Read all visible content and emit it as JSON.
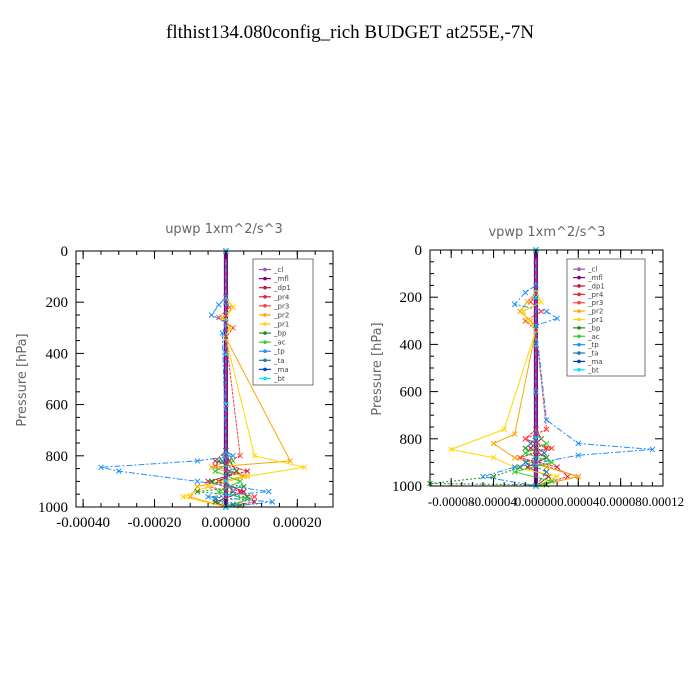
{
  "figure_title": "flthist134.080config_rich  BUDGET at255E,-7N",
  "legend_labels": [
    "_cl",
    "_mfl",
    "_dp1",
    "_pr4",
    "_pr3",
    "_pr2",
    "_pr1",
    "_bp",
    "_ac",
    "_tp",
    "_ta",
    "_ma",
    "_bt"
  ],
  "series_colors": [
    "#9b59b6",
    "#800080",
    "#c0143c",
    "#e0203c",
    "#ff4040",
    "#ffa500",
    "#ffd700",
    "#228b22",
    "#32cd32",
    "#1e90ff",
    "#1f77b4",
    "#0044cc",
    "#00e5ff"
  ],
  "chart_data": [
    {
      "type": "line",
      "title": "upwp  1xm^2/s^3",
      "ylabel": "Pressure [hPa]",
      "xlabel": "",
      "xlim": [
        -0.00042,
        0.0003
      ],
      "ylim": [
        1000,
        0
      ],
      "yticks": [
        0,
        200,
        400,
        600,
        800,
        1000
      ],
      "ytick_labels": [
        "0",
        "200",
        "400",
        "600",
        "800",
        "1000"
      ],
      "xticks": [
        -0.0004,
        -0.0002,
        0.0,
        0.0002
      ],
      "xtick_labels": [
        "-0.00040",
        "-0.00020",
        "0.00000",
        "0.00020"
      ],
      "legend_position": "top-right",
      "series": [
        {
          "name": "_cl",
          "x": [
            0,
            0,
            0,
            0,
            0,
            0,
            0,
            0,
            0,
            0,
            0
          ],
          "y": [
            0,
            100,
            200,
            300,
            400,
            500,
            600,
            700,
            800,
            900,
            1000
          ]
        },
        {
          "name": "_mfl",
          "x": [
            0,
            0,
            0,
            0,
            0,
            0,
            0,
            0,
            0,
            0,
            0
          ],
          "y": [
            0,
            100,
            200,
            300,
            400,
            500,
            600,
            700,
            800,
            900,
            1000
          ]
        },
        {
          "name": "_dp1",
          "x": [
            0,
            0,
            1e-05,
            3e-05,
            -2e-05,
            5e-05,
            -3e-05,
            0
          ],
          "y": [
            0,
            780,
            820,
            860,
            900,
            940,
            980,
            1000
          ]
        },
        {
          "name": "_pr4",
          "x": [
            0,
            0,
            -3e-05,
            6e-05,
            -5e-05,
            4e-05,
            8e-05,
            0
          ],
          "y": [
            0,
            780,
            820,
            860,
            900,
            940,
            980,
            1000
          ]
        },
        {
          "name": "_pr3",
          "x": [
            0,
            0,
            1e-05,
            -2e-05,
            2e-05,
            0,
            4e-05,
            -3e-05,
            6e-05,
            -5e-05,
            8e-05,
            0
          ],
          "y": [
            0,
            180,
            220,
            260,
            300,
            340,
            800,
            840,
            880,
            920,
            960,
            1000
          ]
        },
        {
          "name": "_pr2",
          "x": [
            0,
            0,
            2e-05,
            -1e-05,
            1e-05,
            0,
            0.00018,
            -4e-05,
            5e-05,
            -8e-05,
            -0.0001,
            0
          ],
          "y": [
            0,
            180,
            220,
            260,
            300,
            340,
            820,
            845,
            880,
            920,
            960,
            1000
          ]
        },
        {
          "name": "_pr1",
          "x": [
            0,
            0,
            2e-05,
            0,
            1e-05,
            0,
            8e-05,
            0.00022,
            6e-05,
            -5e-05,
            -0.00012,
            0
          ],
          "y": [
            0,
            180,
            220,
            260,
            300,
            340,
            800,
            845,
            880,
            920,
            960,
            1000
          ]
        },
        {
          "name": "_bp",
          "x": [
            0,
            0,
            -2e-05,
            3e-05,
            -4e-05,
            5e-05,
            -8e-05,
            6e-05,
            -3e-05,
            4e-05,
            0
          ],
          "y": [
            0,
            780,
            820,
            860,
            900,
            920,
            940,
            960,
            980,
            995,
            1000
          ]
        },
        {
          "name": "_ac",
          "x": [
            0,
            0,
            2e-05,
            -3e-05,
            4e-05,
            -2e-05,
            6e-05,
            3e-05,
            0
          ],
          "y": [
            0,
            780,
            820,
            860,
            900,
            940,
            970,
            990,
            1000
          ]
        },
        {
          "name": "_tp",
          "x": [
            0,
            0,
            -2e-05,
            -4e-05,
            0,
            -1e-05,
            0,
            2e-05,
            -8e-05,
            -0.00035,
            -0.0003,
            -8e-05,
            0.00012,
            -5e-05,
            0.00013,
            0
          ],
          "y": [
            0,
            180,
            210,
            250,
            280,
            320,
            780,
            800,
            820,
            845,
            860,
            900,
            940,
            960,
            980,
            1000
          ]
        },
        {
          "name": "_ta",
          "x": [
            0,
            0,
            -1e-05,
            1e-05,
            0,
            2e-05,
            -3e-05,
            2e-05,
            0
          ],
          "y": [
            0,
            780,
            820,
            860,
            900,
            940,
            970,
            990,
            1000
          ]
        },
        {
          "name": "_ma",
          "x": [
            0,
            0,
            0,
            0,
            0,
            0,
            0
          ],
          "y": [
            0,
            200,
            400,
            600,
            800,
            900,
            1000
          ]
        },
        {
          "name": "_bt",
          "x": [
            0,
            0,
            0,
            0,
            0,
            0,
            0
          ],
          "y": [
            0,
            200,
            400,
            600,
            800,
            900,
            1000
          ]
        }
      ]
    },
    {
      "type": "line",
      "title": "vpwp  1xm^2/s^3",
      "ylabel": "Pressure [hPa]",
      "xlabel": "",
      "xlim": [
        -0.0001,
        0.00012
      ],
      "ylim": [
        1000,
        0
      ],
      "yticks": [
        0,
        200,
        400,
        600,
        800,
        1000
      ],
      "ytick_labels": [
        "0",
        "200",
        "400",
        "600",
        "800",
        "1000"
      ],
      "xticks": [
        -8e-05,
        -4e-05,
        0.0,
        4e-05,
        8e-05,
        0.00012
      ],
      "xtick_labels": [
        "-0.00008",
        "-0.00004",
        "0.00000",
        "0.00004",
        "0.00008",
        "0.00012"
      ],
      "legend_position": "top-right",
      "series": [
        {
          "name": "_cl",
          "x": [
            0,
            0,
            0,
            0,
            0,
            0,
            0,
            0,
            0,
            0,
            0
          ],
          "y": [
            0,
            100,
            200,
            300,
            400,
            500,
            600,
            700,
            800,
            900,
            1000
          ]
        },
        {
          "name": "_mfl",
          "x": [
            0,
            0,
            0,
            0,
            0,
            0,
            0,
            0,
            0,
            0,
            0
          ],
          "y": [
            0,
            100,
            200,
            300,
            400,
            500,
            600,
            700,
            800,
            900,
            1000
          ]
        },
        {
          "name": "_dp1",
          "x": [
            0,
            0,
            5e-06,
            -5e-06,
            1e-05,
            -8e-06,
            1.2e-05,
            0
          ],
          "y": [
            0,
            760,
            800,
            840,
            880,
            920,
            960,
            1000
          ]
        },
        {
          "name": "_pr4",
          "x": [
            0,
            0,
            -1e-05,
            1e-05,
            -1.5e-05,
            2e-05,
            3e-05,
            0
          ],
          "y": [
            0,
            760,
            800,
            840,
            880,
            920,
            960,
            1000
          ]
        },
        {
          "name": "_pr3",
          "x": [
            0,
            0,
            -5e-06,
            5e-06,
            -1e-05,
            0,
            1e-05,
            -1e-05,
            1.5e-05,
            -1.5e-05,
            4e-05,
            0
          ],
          "y": [
            0,
            180,
            220,
            260,
            300,
            340,
            760,
            800,
            840,
            880,
            960,
            1000
          ]
        },
        {
          "name": "_pr2",
          "x": [
            0,
            0,
            -8e-06,
            -1.5e-05,
            -5e-06,
            0,
            -2e-05,
            -4e-05,
            -2e-05,
            1e-05,
            4e-05,
            0
          ],
          "y": [
            0,
            180,
            220,
            260,
            300,
            340,
            780,
            820,
            880,
            920,
            960,
            1000
          ]
        },
        {
          "name": "_pr1",
          "x": [
            0,
            0,
            5e-06,
            -1.2e-05,
            -8e-06,
            0,
            -3e-05,
            -8e-05,
            -4e-05,
            -2e-05,
            2e-05,
            0
          ],
          "y": [
            0,
            180,
            220,
            260,
            300,
            340,
            760,
            845,
            880,
            920,
            960,
            1000
          ]
        },
        {
          "name": "_bp",
          "x": [
            0,
            0,
            -1e-05,
            1e-05,
            -1.5e-05,
            -4e-05,
            -0.0001,
            1e-05,
            0
          ],
          "y": [
            0,
            800,
            840,
            880,
            920,
            960,
            990,
            995,
            1000
          ]
        },
        {
          "name": "_ac",
          "x": [
            0,
            0,
            1e-05,
            -1e-05,
            1.5e-05,
            -2e-05,
            1.5e-05,
            0
          ],
          "y": [
            0,
            780,
            820,
            860,
            900,
            940,
            980,
            1000
          ]
        },
        {
          "name": "_tp",
          "x": [
            0,
            0,
            -1e-05,
            -2e-05,
            1e-05,
            2e-05,
            0,
            1e-05,
            4e-05,
            0.00011,
            4e-05,
            -2e-05,
            -5e-05,
            0
          ],
          "y": [
            0,
            150,
            180,
            230,
            260,
            290,
            320,
            720,
            820,
            845,
            870,
            920,
            960,
            1000
          ]
        },
        {
          "name": "_ta",
          "x": [
            0,
            0,
            -5e-06,
            8e-06,
            -1e-05,
            1e-05,
            0
          ],
          "y": [
            0,
            780,
            820,
            860,
            900,
            940,
            1000
          ]
        },
        {
          "name": "_ma",
          "x": [
            0,
            0,
            0,
            0,
            0,
            0,
            0
          ],
          "y": [
            0,
            200,
            400,
            600,
            800,
            900,
            1000
          ]
        },
        {
          "name": "_bt",
          "x": [
            0,
            0,
            0,
            0,
            0,
            0,
            0
          ],
          "y": [
            0,
            200,
            400,
            600,
            800,
            900,
            1000
          ]
        }
      ]
    }
  ]
}
